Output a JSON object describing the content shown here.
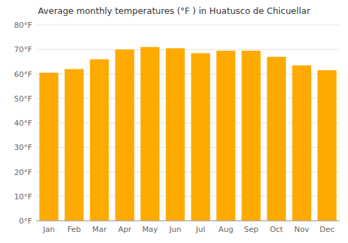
{
  "chart_data": {
    "type": "bar",
    "title": "Average monthly temperatures (°F ) in Huatusco de Chicuellar",
    "categories": [
      "Jan",
      "Feb",
      "Mar",
      "Apr",
      "May",
      "Jun",
      "Jul",
      "Aug",
      "Sep",
      "Oct",
      "Nov",
      "Dec"
    ],
    "values": [
      60.5,
      62,
      66,
      70,
      71,
      70.5,
      68.5,
      69.5,
      69.5,
      67,
      63.5,
      61.5
    ],
    "color": "#FFAA00",
    "ylim": [
      0,
      80
    ],
    "yticks": [
      {
        "value": 0,
        "label": "0°F"
      },
      {
        "value": 10,
        "label": "10°F"
      },
      {
        "value": 20,
        "label": "20°F"
      },
      {
        "value": 30,
        "label": "30°F"
      },
      {
        "value": 40,
        "label": "40°F"
      },
      {
        "value": 50,
        "label": "50°F"
      },
      {
        "value": 60,
        "label": "60°F"
      },
      {
        "value": 70,
        "label": "70°F"
      },
      {
        "value": 80,
        "label": "80°F"
      }
    ],
    "grid": true
  }
}
